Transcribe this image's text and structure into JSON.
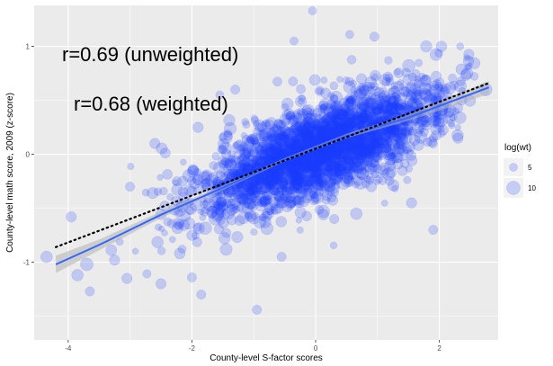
{
  "chart_data": {
    "type": "scatter",
    "title": "",
    "xlabel": "County-level S-factor scores",
    "ylabel": "County-level math score, 2009 (z-score)",
    "xlim": [
      -4.55,
      2.95
    ],
    "ylim": [
      -1.72,
      1.38
    ],
    "x_ticks": [
      -4,
      -2,
      0,
      2
    ],
    "x_tick_labels": [
      "-4",
      "-2",
      "0",
      "2"
    ],
    "y_ticks": [
      -1,
      0,
      1
    ],
    "y_tick_labels": [
      "-1",
      "0",
      "1"
    ],
    "grid": true,
    "colors": {
      "panel_bg": "#ebebeb",
      "grid": "#ffffff",
      "point": "#1a3cff",
      "fit_line": "#3366ff",
      "ribbon": "#b3b3b3",
      "dotted_line": "#000000",
      "legend_key_bg": "#f2f2f2"
    },
    "annotations": [
      {
        "text": "r=0.69 (unweighted)"
      },
      {
        "text": "r=0.68 (weighted)"
      }
    ],
    "legend": {
      "title": "log(wt)",
      "position": "right",
      "entries": [
        {
          "label": "5",
          "value": 5
        },
        {
          "label": "10",
          "value": 10
        }
      ]
    },
    "fit_loess": {
      "x": [
        -4.2,
        -3.5,
        -2.5,
        -1.5,
        -0.5,
        0.5,
        1.5,
        2.8
      ],
      "y": [
        -1.02,
        -0.84,
        -0.56,
        -0.31,
        -0.05,
        0.17,
        0.34,
        0.62
      ],
      "se_band": [
        0.08,
        0.05,
        0.03,
        0.02,
        0.015,
        0.02,
        0.03,
        0.06
      ]
    },
    "fit_linear": {
      "x": [
        -4.2,
        2.8
      ],
      "y": [
        -0.86,
        0.66
      ]
    },
    "outliers": [
      {
        "x": -0.05,
        "y": 1.33,
        "w": 5
      },
      {
        "x": 0.55,
        "y": 1.11,
        "w": 5
      },
      {
        "x": 0.95,
        "y": 1.09,
        "w": 6
      },
      {
        "x": -0.35,
        "y": 1.05,
        "w": 5
      },
      {
        "x": -1.3,
        "y": 0.6,
        "w": 6
      },
      {
        "x": -1.55,
        "y": 0.55,
        "w": 5
      },
      {
        "x": 2.45,
        "y": 0.75,
        "w": 8
      },
      {
        "x": 2.75,
        "y": 0.6,
        "w": 9
      },
      {
        "x": 2.3,
        "y": 0.15,
        "w": 7
      },
      {
        "x": -3.95,
        "y": -0.58,
        "w": 7
      },
      {
        "x": -4.35,
        "y": -0.95,
        "w": 8
      },
      {
        "x": -3.7,
        "y": -1.02,
        "w": 9
      },
      {
        "x": -3.85,
        "y": -1.12,
        "w": 8
      },
      {
        "x": -3.65,
        "y": -1.27,
        "w": 6
      },
      {
        "x": -3.25,
        "y": -0.98,
        "w": 7
      },
      {
        "x": -3.05,
        "y": -1.15,
        "w": 7
      },
      {
        "x": -2.5,
        "y": -1.2,
        "w": 7
      },
      {
        "x": -2.0,
        "y": -1.14,
        "w": 6
      },
      {
        "x": -1.85,
        "y": -1.3,
        "w": 6
      },
      {
        "x": -0.95,
        "y": -1.44,
        "w": 6
      },
      {
        "x": -0.55,
        "y": -0.95,
        "w": 6
      },
      {
        "x": 0.3,
        "y": -0.6,
        "w": 6
      },
      {
        "x": 1.9,
        "y": -0.7,
        "w": 6
      },
      {
        "x": 1.55,
        "y": -0.45,
        "w": 7
      },
      {
        "x": -1.9,
        "y": 0.25,
        "w": 7
      },
      {
        "x": -2.6,
        "y": 0.1,
        "w": 7
      },
      {
        "x": -3.0,
        "y": -0.3,
        "w": 6
      },
      {
        "x": -2.0,
        "y": -0.75,
        "w": 7
      },
      {
        "x": 0.9,
        "y": -0.3,
        "w": 7
      },
      {
        "x": 2.05,
        "y": 0.45,
        "w": 9
      }
    ],
    "cloud": {
      "n": 2700,
      "x_mean": 0.1,
      "x_sd": 0.95,
      "slope": 0.215,
      "intercept": 0.02,
      "resid_sd": 0.21,
      "x_range": [
        -4.3,
        2.75
      ],
      "y_range": [
        -1.45,
        1.0
      ]
    }
  }
}
